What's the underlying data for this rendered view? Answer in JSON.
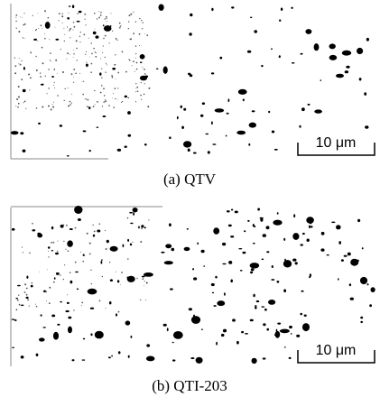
{
  "panels": [
    {
      "caption": "(a)  QTV",
      "scale_label": "10 μm"
    },
    {
      "caption": "(b)  QTI-203",
      "scale_label": "10 μm"
    }
  ]
}
